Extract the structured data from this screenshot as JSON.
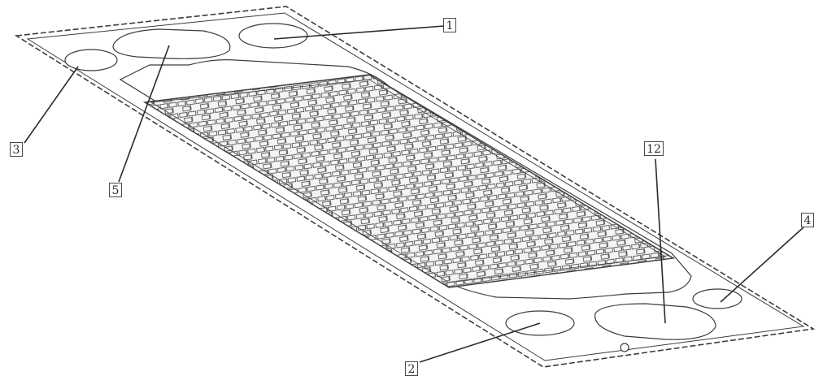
{
  "labels": {
    "l1": "1",
    "l2": "2",
    "l3": "3",
    "l4": "4",
    "l5": "5",
    "l12": "12"
  },
  "colors": {
    "line": "#3c3c3c",
    "pattern": "#555555",
    "background": "#ffffff"
  }
}
